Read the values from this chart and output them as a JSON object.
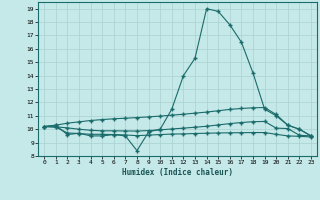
{
  "title": "",
  "xlabel": "Humidex (Indice chaleur)",
  "ylabel": "",
  "bg_color": "#c5e8e8",
  "grid_color": "#aad0d0",
  "line_color": "#1a6b6b",
  "xlim": [
    -0.5,
    23.5
  ],
  "ylim": [
    8,
    19.5
  ],
  "yticks": [
    8,
    9,
    10,
    11,
    12,
    13,
    14,
    15,
    16,
    17,
    18,
    19
  ],
  "xticks": [
    0,
    1,
    2,
    3,
    4,
    5,
    6,
    7,
    8,
    9,
    10,
    11,
    12,
    13,
    14,
    15,
    16,
    17,
    18,
    19,
    20,
    21,
    22,
    23
  ],
  "line1_y": [
    10.2,
    10.3,
    9.6,
    9.7,
    9.5,
    9.5,
    9.6,
    9.5,
    8.4,
    9.8,
    10.0,
    11.5,
    14.0,
    15.3,
    19.0,
    18.8,
    17.8,
    16.5,
    14.2,
    11.5,
    11.0,
    10.3,
    10.0,
    9.5
  ],
  "line2_y": [
    10.2,
    10.3,
    10.45,
    10.55,
    10.65,
    10.72,
    10.78,
    10.82,
    10.87,
    10.92,
    10.98,
    11.05,
    11.12,
    11.2,
    11.28,
    11.38,
    11.48,
    11.55,
    11.6,
    11.62,
    11.1,
    10.3,
    10.0,
    9.5
  ],
  "line3_y": [
    10.2,
    10.18,
    10.1,
    10.0,
    9.92,
    9.88,
    9.88,
    9.87,
    9.86,
    9.9,
    9.95,
    10.02,
    10.08,
    10.15,
    10.22,
    10.32,
    10.42,
    10.5,
    10.56,
    10.58,
    10.08,
    10.05,
    9.55,
    9.5
  ],
  "line4_y": [
    10.2,
    10.15,
    9.72,
    9.68,
    9.62,
    9.62,
    9.6,
    9.57,
    9.52,
    9.56,
    9.6,
    9.64,
    9.65,
    9.68,
    9.7,
    9.72,
    9.73,
    9.74,
    9.75,
    9.75,
    9.62,
    9.5,
    9.47,
    9.42
  ]
}
